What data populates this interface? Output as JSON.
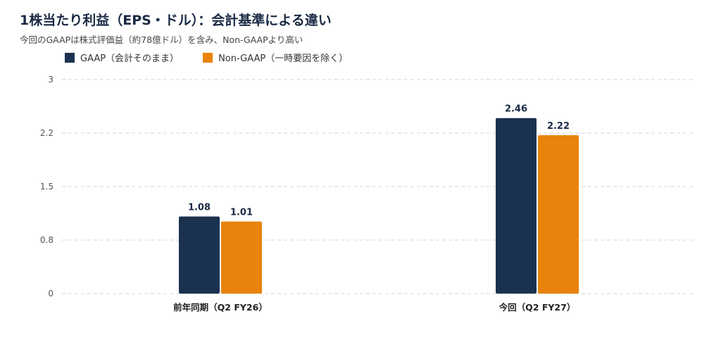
{
  "chart_data": {
    "type": "bar",
    "title": "1株当たり利益（EPS・ドル）：会計基準による違い",
    "subtitle": "今回のGAAPは株式評価益（約78億ドル）を含み、Non-GAAPより高い",
    "categories": [
      "前年同期（Q2 FY26）",
      "今回（Q2 FY27）"
    ],
    "series": [
      {
        "name": "GAAP（会計そのまま）",
        "values": [
          1.08,
          2.46
        ],
        "labels": [
          "1.08",
          "2.46"
        ],
        "color": "#1b3150"
      },
      {
        "name": "Non-GAAP（一時要因を除く）",
        "values": [
          1.01,
          2.22
        ],
        "labels": [
          "1.01",
          "2.22"
        ],
        "color": "#e8830c"
      }
    ],
    "y_ticks": [
      0,
      0.75,
      1.5,
      2.25,
      3
    ],
    "y_tick_labels": [
      "0",
      "0.8",
      "1.5",
      "2.2",
      "3"
    ],
    "ylim": [
      0,
      3
    ],
    "grid": true,
    "legend_position": "top-left"
  }
}
